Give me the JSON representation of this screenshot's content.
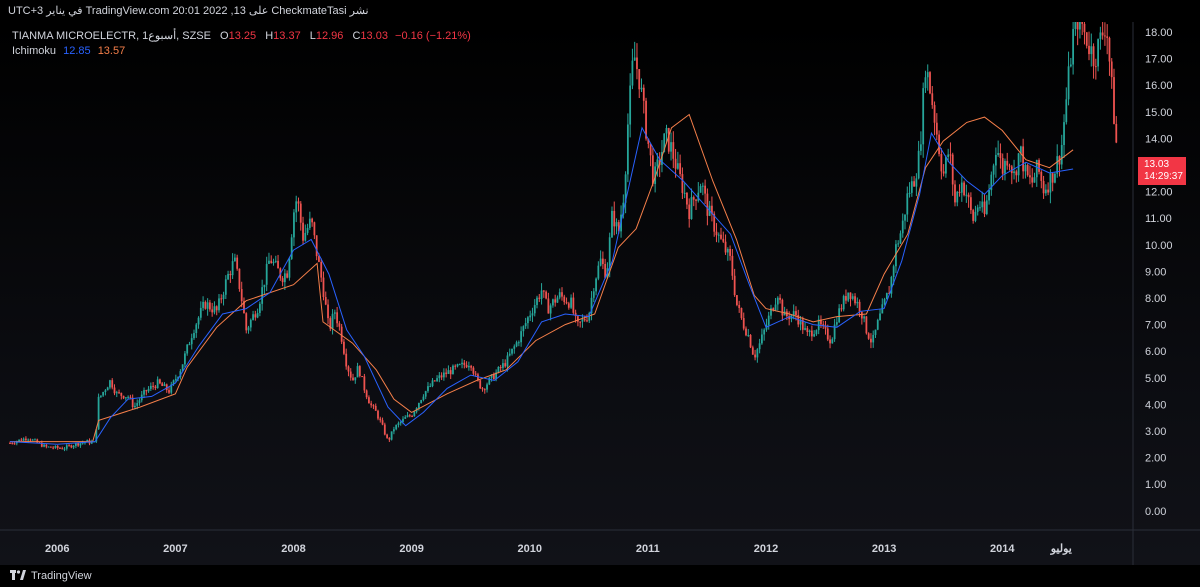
{
  "header": {
    "published_text": "نشر CheckmateTasi على TradingView.com 20:01 2022 ,13 في يناير UTC+3"
  },
  "legend": {
    "symbol": "TIANMA MICROELECTR, 1أسبوع, SZSE",
    "open_label": "O",
    "open": "13.25",
    "high_label": "H",
    "high": "13.37",
    "low_label": "L",
    "low": "12.96",
    "close_label": "C",
    "close": "13.03",
    "change": "−0.16 (−1.21%)",
    "indicator_name": "Ichimoku",
    "indicator_v1": "12.85",
    "indicator_v2": "13.57"
  },
  "price_tag": {
    "price": "13.03",
    "countdown": "14:29:37",
    "color": "#f23645"
  },
  "footer": {
    "brand": "TradingView"
  },
  "colors": {
    "up": "#26a69a",
    "down": "#ef5350",
    "conversion": "#2962ff",
    "base": "#f57f4a",
    "background": "#000000",
    "axis_text": "#d1d4dc"
  },
  "chart_data": {
    "type": "candlestick",
    "title": "TIANMA MICROELECTR, 1أسبوع, SZSE",
    "ylim": [
      -1,
      18.4
    ],
    "y_ticks": [
      "0.00",
      "1.00",
      "2.00",
      "3.00",
      "4.00",
      "5.00",
      "6.00",
      "7.00",
      "8.00",
      "9.00",
      "10.00",
      "11.00",
      "12.00",
      "13.00",
      "14.00",
      "15.00",
      "16.00",
      "17.00",
      "18.00"
    ],
    "x_ticks": [
      "2006",
      "2007",
      "2008",
      "2009",
      "2010",
      "2011",
      "2012",
      "2013",
      "2014",
      "يوليو"
    ],
    "x_tick_years": [
      2006,
      2007,
      2008,
      2009,
      2010,
      2011,
      2012,
      2013,
      2014,
      2014.5
    ],
    "x_range": [
      2005.6,
      2014.98
    ],
    "grid": false,
    "series": [
      {
        "name": "Price",
        "close_path": [
          [
            2005.6,
            2.55
          ],
          [
            2005.75,
            2.75
          ],
          [
            2005.9,
            2.4
          ],
          [
            2006.05,
            2.35
          ],
          [
            2006.15,
            2.5
          ],
          [
            2006.25,
            2.6
          ],
          [
            2006.32,
            2.55
          ],
          [
            2006.35,
            4.2
          ],
          [
            2006.45,
            4.9
          ],
          [
            2006.5,
            4.4
          ],
          [
            2006.6,
            4.3
          ],
          [
            2006.65,
            3.9
          ],
          [
            2006.75,
            4.5
          ],
          [
            2006.85,
            4.8
          ],
          [
            2006.95,
            4.5
          ],
          [
            2007.05,
            5.4
          ],
          [
            2007.15,
            6.8
          ],
          [
            2007.25,
            7.8
          ],
          [
            2007.35,
            7.5
          ],
          [
            2007.45,
            8.9
          ],
          [
            2007.5,
            9.4
          ],
          [
            2007.55,
            8.3
          ],
          [
            2007.6,
            6.8
          ],
          [
            2007.7,
            7.7
          ],
          [
            2007.8,
            9.5
          ],
          [
            2007.9,
            8.8
          ],
          [
            2007.95,
            9.0
          ],
          [
            2008.0,
            11.2
          ],
          [
            2008.03,
            11.8
          ],
          [
            2008.08,
            10.3
          ],
          [
            2008.15,
            10.9
          ],
          [
            2008.2,
            9.6
          ],
          [
            2008.25,
            8.4
          ],
          [
            2008.3,
            6.8
          ],
          [
            2008.35,
            7.5
          ],
          [
            2008.4,
            6.7
          ],
          [
            2008.45,
            5.5
          ],
          [
            2008.5,
            4.9
          ],
          [
            2008.55,
            5.4
          ],
          [
            2008.6,
            4.6
          ],
          [
            2008.65,
            4.0
          ],
          [
            2008.7,
            3.7
          ],
          [
            2008.75,
            3.2
          ],
          [
            2008.8,
            2.6
          ],
          [
            2008.85,
            3.1
          ],
          [
            2008.95,
            3.5
          ],
          [
            2009.0,
            3.6
          ],
          [
            2009.1,
            4.4
          ],
          [
            2009.2,
            4.9
          ],
          [
            2009.3,
            5.2
          ],
          [
            2009.4,
            5.4
          ],
          [
            2009.5,
            5.6
          ],
          [
            2009.55,
            4.9
          ],
          [
            2009.6,
            4.6
          ],
          [
            2009.7,
            5.1
          ],
          [
            2009.8,
            5.6
          ],
          [
            2009.9,
            6.4
          ],
          [
            2010.0,
            7.4
          ],
          [
            2010.1,
            8.3
          ],
          [
            2010.15,
            7.6
          ],
          [
            2010.25,
            8.1
          ],
          [
            2010.35,
            7.8
          ],
          [
            2010.4,
            6.9
          ],
          [
            2010.5,
            7.4
          ],
          [
            2010.55,
            8.7
          ],
          [
            2010.6,
            9.4
          ],
          [
            2010.65,
            8.9
          ],
          [
            2010.7,
            11.2
          ],
          [
            2010.75,
            10.4
          ],
          [
            2010.8,
            12.1
          ],
          [
            2010.83,
            14.5
          ],
          [
            2010.88,
            17.2
          ],
          [
            2010.93,
            16.2
          ],
          [
            2010.98,
            14.5
          ],
          [
            2011.05,
            12.4
          ],
          [
            2011.1,
            13.2
          ],
          [
            2011.15,
            14.1
          ],
          [
            2011.2,
            13.6
          ],
          [
            2011.25,
            12.8
          ],
          [
            2011.3,
            12.1
          ],
          [
            2011.35,
            11.3
          ],
          [
            2011.45,
            12.4
          ],
          [
            2011.5,
            11.4
          ],
          [
            2011.6,
            10.3
          ],
          [
            2011.7,
            9.4
          ],
          [
            2011.75,
            7.8
          ],
          [
            2011.8,
            7.1
          ],
          [
            2011.85,
            6.6
          ],
          [
            2011.9,
            5.8
          ],
          [
            2011.95,
            6.3
          ],
          [
            2012.05,
            7.6
          ],
          [
            2012.1,
            8.2
          ],
          [
            2012.15,
            7.3
          ],
          [
            2012.25,
            7.4
          ],
          [
            2012.35,
            6.6
          ],
          [
            2012.45,
            7.0
          ],
          [
            2012.55,
            6.4
          ],
          [
            2012.6,
            7.3
          ],
          [
            2012.7,
            8.3
          ],
          [
            2012.8,
            7.6
          ],
          [
            2012.85,
            6.8
          ],
          [
            2012.9,
            6.3
          ],
          [
            2012.95,
            7.1
          ],
          [
            2013.05,
            8.4
          ],
          [
            2013.1,
            9.9
          ],
          [
            2013.15,
            10.6
          ],
          [
            2013.2,
            11.9
          ],
          [
            2013.25,
            12.4
          ],
          [
            2013.3,
            13.4
          ],
          [
            2013.35,
            16.8
          ],
          [
            2013.4,
            15.6
          ],
          [
            2013.45,
            14.1
          ],
          [
            2013.5,
            12.6
          ],
          [
            2013.55,
            13.6
          ],
          [
            2013.6,
            11.6
          ],
          [
            2013.65,
            12.4
          ],
          [
            2013.7,
            11.9
          ],
          [
            2013.75,
            10.9
          ],
          [
            2013.8,
            11.6
          ],
          [
            2013.85,
            11.1
          ],
          [
            2013.9,
            12.4
          ],
          [
            2013.95,
            13.8
          ],
          [
            2014.0,
            12.8
          ],
          [
            2014.05,
            13.4
          ],
          [
            2014.1,
            12.6
          ],
          [
            2014.15,
            13.6
          ],
          [
            2014.2,
            12.6
          ],
          [
            2014.25,
            12.3
          ],
          [
            2014.3,
            12.9
          ],
          [
            2014.35,
            12.1
          ],
          [
            2014.4,
            12.4
          ],
          [
            2014.45,
            12.9
          ],
          [
            2014.5,
            13.6
          ],
          [
            2014.55,
            15.8
          ],
          [
            2014.6,
            17.9
          ],
          [
            2014.65,
            18.7
          ],
          [
            2014.7,
            17.9
          ],
          [
            2014.78,
            17.0
          ],
          [
            2014.88,
            18.4
          ],
          [
            2014.98,
            13.03
          ]
        ]
      },
      {
        "name": "Ichimoku",
        "points": [
          [
            2005.6,
            2.6
          ],
          [
            2006.0,
            2.5
          ],
          [
            2006.32,
            2.6
          ],
          [
            2006.45,
            3.5
          ],
          [
            2006.6,
            4.2
          ],
          [
            2006.8,
            4.3
          ],
          [
            2007.0,
            4.8
          ],
          [
            2007.2,
            6.2
          ],
          [
            2007.4,
            7.4
          ],
          [
            2007.6,
            7.6
          ],
          [
            2007.8,
            8.2
          ],
          [
            2008.0,
            9.8
          ],
          [
            2008.15,
            10.2
          ],
          [
            2008.3,
            8.9
          ],
          [
            2008.45,
            6.8
          ],
          [
            2008.6,
            5.8
          ],
          [
            2008.8,
            3.9
          ],
          [
            2008.95,
            3.2
          ],
          [
            2009.1,
            3.7
          ],
          [
            2009.3,
            4.6
          ],
          [
            2009.5,
            5.1
          ],
          [
            2009.7,
            4.9
          ],
          [
            2009.9,
            5.6
          ],
          [
            2010.1,
            7.1
          ],
          [
            2010.3,
            7.4
          ],
          [
            2010.5,
            7.3
          ],
          [
            2010.7,
            9.4
          ],
          [
            2010.85,
            12.4
          ],
          [
            2010.95,
            14.4
          ],
          [
            2011.1,
            13.2
          ],
          [
            2011.3,
            12.4
          ],
          [
            2011.5,
            11.4
          ],
          [
            2011.7,
            10.4
          ],
          [
            2011.85,
            8.6
          ],
          [
            2012.0,
            6.9
          ],
          [
            2012.2,
            7.3
          ],
          [
            2012.4,
            7.0
          ],
          [
            2012.6,
            6.9
          ],
          [
            2012.8,
            7.5
          ],
          [
            2013.0,
            7.6
          ],
          [
            2013.15,
            9.4
          ],
          [
            2013.3,
            11.9
          ],
          [
            2013.4,
            14.2
          ],
          [
            2013.55,
            13.1
          ],
          [
            2013.7,
            12.4
          ],
          [
            2013.85,
            11.9
          ],
          [
            2014.0,
            12.6
          ],
          [
            2014.2,
            13.1
          ],
          [
            2014.4,
            12.7
          ],
          [
            2014.6,
            12.85
          ]
        ]
      },
      {
        "name": "Ichimoku",
        "points": [
          [
            2005.6,
            2.6
          ],
          [
            2006.3,
            2.6
          ],
          [
            2006.35,
            3.4
          ],
          [
            2006.7,
            3.9
          ],
          [
            2007.0,
            4.4
          ],
          [
            2007.1,
            5.4
          ],
          [
            2007.35,
            6.9
          ],
          [
            2007.6,
            7.9
          ],
          [
            2008.0,
            8.5
          ],
          [
            2008.2,
            9.3
          ],
          [
            2008.25,
            7.1
          ],
          [
            2008.5,
            6.3
          ],
          [
            2008.7,
            5.3
          ],
          [
            2008.85,
            4.2
          ],
          [
            2009.0,
            3.7
          ],
          [
            2009.3,
            4.4
          ],
          [
            2009.55,
            4.9
          ],
          [
            2009.8,
            5.3
          ],
          [
            2010.05,
            6.4
          ],
          [
            2010.3,
            7.0
          ],
          [
            2010.55,
            7.4
          ],
          [
            2010.75,
            9.9
          ],
          [
            2010.9,
            10.6
          ],
          [
            2011.05,
            12.4
          ],
          [
            2011.2,
            14.4
          ],
          [
            2011.35,
            14.9
          ],
          [
            2011.55,
            12.4
          ],
          [
            2011.75,
            10.2
          ],
          [
            2011.9,
            8.1
          ],
          [
            2012.0,
            7.6
          ],
          [
            2012.2,
            7.4
          ],
          [
            2012.4,
            7.1
          ],
          [
            2012.6,
            7.3
          ],
          [
            2012.85,
            7.4
          ],
          [
            2013.0,
            8.9
          ],
          [
            2013.2,
            10.4
          ],
          [
            2013.35,
            12.9
          ],
          [
            2013.5,
            13.9
          ],
          [
            2013.7,
            14.6
          ],
          [
            2013.85,
            14.8
          ],
          [
            2014.0,
            14.3
          ],
          [
            2014.2,
            13.2
          ],
          [
            2014.4,
            12.9
          ],
          [
            2014.6,
            13.57
          ]
        ]
      }
    ]
  }
}
